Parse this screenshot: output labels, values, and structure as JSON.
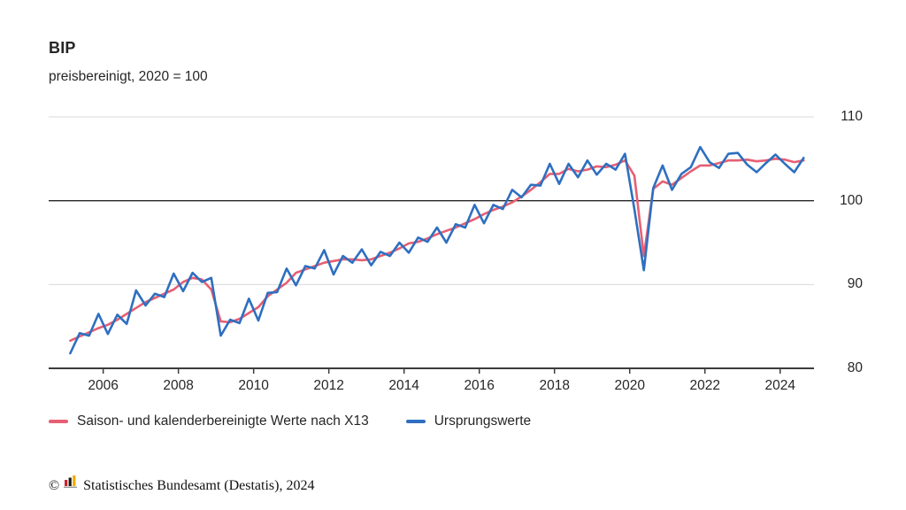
{
  "header": {
    "title": "BIP",
    "subtitle": "preisbereinigt, 2020 = 100"
  },
  "chart_data": {
    "type": "line",
    "title": "BIP",
    "subtitle": "preisbereinigt, 2020 = 100",
    "x_unit": "quarters",
    "x_start": 2005.125,
    "x_step": 0.25,
    "x_domain": [
      2004.55,
      2024.9
    ],
    "ylim": [
      80,
      110
    ],
    "y_ticks": [
      80,
      90,
      100,
      110
    ],
    "x_ticks": [
      2006,
      2008,
      2010,
      2012,
      2014,
      2016,
      2018,
      2020,
      2022,
      2024
    ],
    "baseline_value": 100,
    "grid_on": true,
    "legend_position": "bottom",
    "colors": {
      "grid": "#d9d9d9",
      "baseline": "#262626",
      "axis": "#3c3c3c",
      "adjusted_red": "#e75f73",
      "original_blue": "#2e6fc0"
    },
    "series": [
      {
        "name": "Saison- und kalenderbereinigte Werte nach X13",
        "color": "#e75f73",
        "values": [
          83.3,
          83.8,
          84.3,
          84.8,
          85.2,
          85.8,
          86.5,
          87.2,
          87.9,
          88.4,
          88.9,
          89.4,
          90.3,
          90.8,
          90.6,
          89.4,
          85.6,
          85.5,
          85.9,
          86.6,
          87.3,
          88.6,
          89.4,
          90.2,
          91.4,
          91.8,
          92.2,
          92.6,
          92.8,
          93.0,
          93.0,
          92.9,
          93.0,
          93.4,
          93.8,
          94.3,
          94.9,
          95.1,
          95.5,
          96.0,
          96.4,
          96.8,
          97.3,
          97.8,
          98.4,
          98.9,
          99.3,
          99.8,
          100.5,
          101.3,
          102.2,
          103.2,
          103.2,
          103.8,
          103.5,
          103.7,
          104.1,
          104.0,
          104.3,
          104.8,
          103.0,
          93.4,
          101.4,
          102.3,
          101.9,
          102.7,
          103.5,
          104.2,
          104.2,
          104.5,
          104.8,
          104.8,
          104.9,
          104.7,
          104.8,
          105.0,
          104.9,
          104.6,
          104.8
        ]
      },
      {
        "name": "Ursprungswerte",
        "color": "#2e6fc0",
        "values": [
          81.8,
          84.2,
          83.9,
          86.5,
          84.1,
          86.4,
          85.3,
          89.3,
          87.5,
          88.9,
          88.5,
          91.3,
          89.2,
          91.4,
          90.3,
          90.8,
          83.9,
          85.8,
          85.4,
          88.3,
          85.7,
          89.0,
          89.1,
          91.9,
          89.9,
          92.2,
          91.9,
          94.1,
          91.2,
          93.4,
          92.6,
          94.2,
          92.3,
          93.9,
          93.4,
          95.0,
          93.8,
          95.6,
          95.1,
          96.8,
          95.0,
          97.2,
          96.8,
          99.5,
          97.3,
          99.5,
          99.0,
          101.3,
          100.4,
          101.9,
          101.8,
          104.4,
          102.0,
          104.4,
          102.8,
          104.8,
          103.1,
          104.4,
          103.7,
          105.6,
          99.0,
          91.7,
          101.5,
          104.2,
          101.3,
          103.2,
          104.0,
          106.4,
          104.6,
          103.9,
          105.6,
          105.7,
          104.3,
          103.4,
          104.5,
          105.5,
          104.4,
          103.4,
          105.1
        ]
      }
    ]
  },
  "legend": {
    "items": [
      {
        "label": "Saison- und kalenderbereinigte Werte nach X13",
        "color": "#e75f73"
      },
      {
        "label": "Ursprungswerte",
        "color": "#2e6fc0"
      }
    ]
  },
  "footer": {
    "copyright_symbol": "©",
    "logo_icon": "destatis-bar-chart-icon",
    "source_text": "Statistisches Bundesamt (Destatis), 2024"
  }
}
